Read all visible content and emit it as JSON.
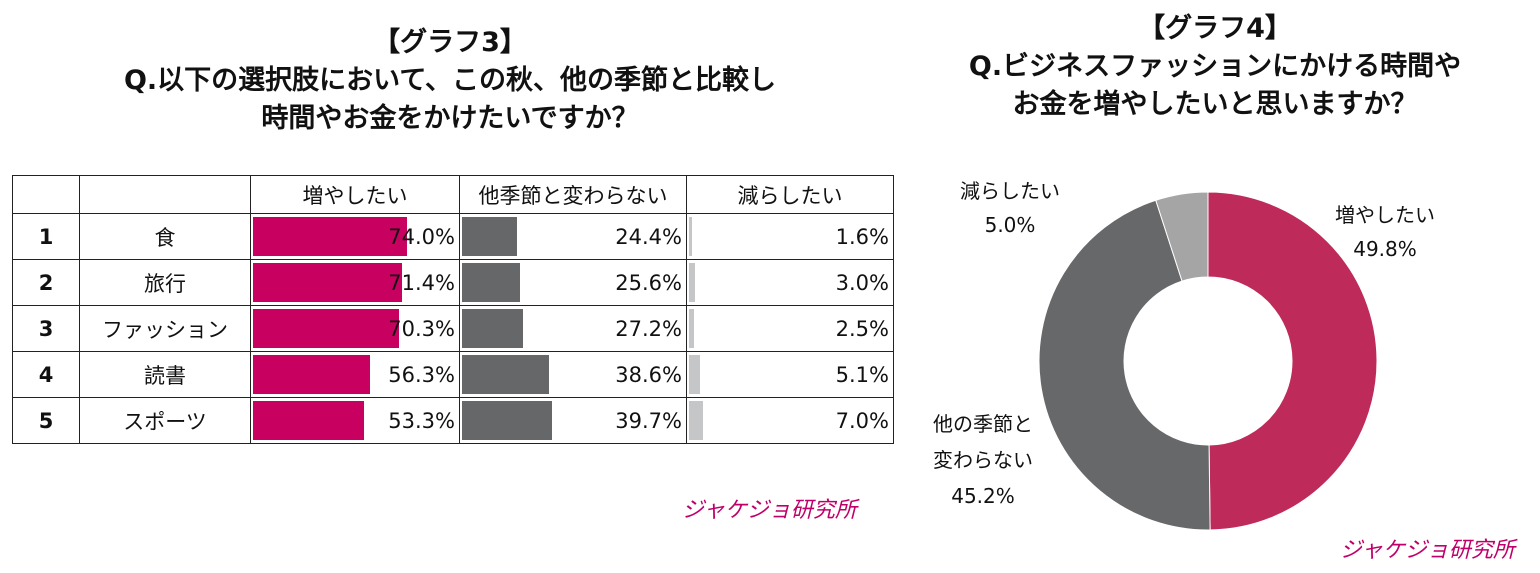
{
  "chart_data": [
    {
      "type": "table",
      "title_lines": [
        "【グラフ3】",
        "Q.以下の選択肢において、この秋、他の季節と比較し",
        "時間やお金をかけたいですか？"
      ],
      "columns": [
        "増やしたい",
        "他季節と変わらない",
        "減らしたい"
      ],
      "rows": [
        {
          "rank": "1",
          "item": "食",
          "values": [
            74.0,
            24.4,
            1.6
          ],
          "labels": [
            "74.0%",
            "24.4%",
            "1.6%"
          ]
        },
        {
          "rank": "2",
          "item": "旅行",
          "values": [
            71.4,
            25.6,
            3.0
          ],
          "labels": [
            "71.4%",
            "25.6%",
            "3.0%"
          ]
        },
        {
          "rank": "3",
          "item": "ファッション",
          "values": [
            70.3,
            27.2,
            2.5
          ],
          "labels": [
            "70.3%",
            "27.2%",
            "2.5%"
          ]
        },
        {
          "rank": "4",
          "item": "読書",
          "values": [
            56.3,
            38.6,
            5.1
          ],
          "labels": [
            "56.3%",
            "38.6%",
            "5.1%"
          ]
        },
        {
          "rank": "5",
          "item": "スポーツ",
          "values": [
            53.3,
            39.7,
            7.0
          ],
          "labels": [
            "53.3%",
            "39.7%",
            "7.0%"
          ]
        }
      ],
      "colors": [
        "#c8005f",
        "#666769",
        "#c5c6c8"
      ]
    },
    {
      "type": "pie",
      "donut": true,
      "title_lines": [
        "【グラフ4】",
        "Q.ビジネスファッションにかける時間や",
        "お金を増やしたいと思いますか？"
      ],
      "slices": [
        {
          "label": "増やしたい",
          "value": 49.8,
          "value_label": "49.8%",
          "color": "#be2a5a"
        },
        {
          "label": "他の季節と変わらない",
          "label_lines": [
            "他の季節と",
            "変わらない"
          ],
          "value": 45.2,
          "value_label": "45.2%",
          "color": "#67686a"
        },
        {
          "label": "減らしたい",
          "value": 5.0,
          "value_label": "5.0%",
          "color": "#a5a5a5"
        }
      ]
    }
  ],
  "logo": "ジャケジョ研究所"
}
